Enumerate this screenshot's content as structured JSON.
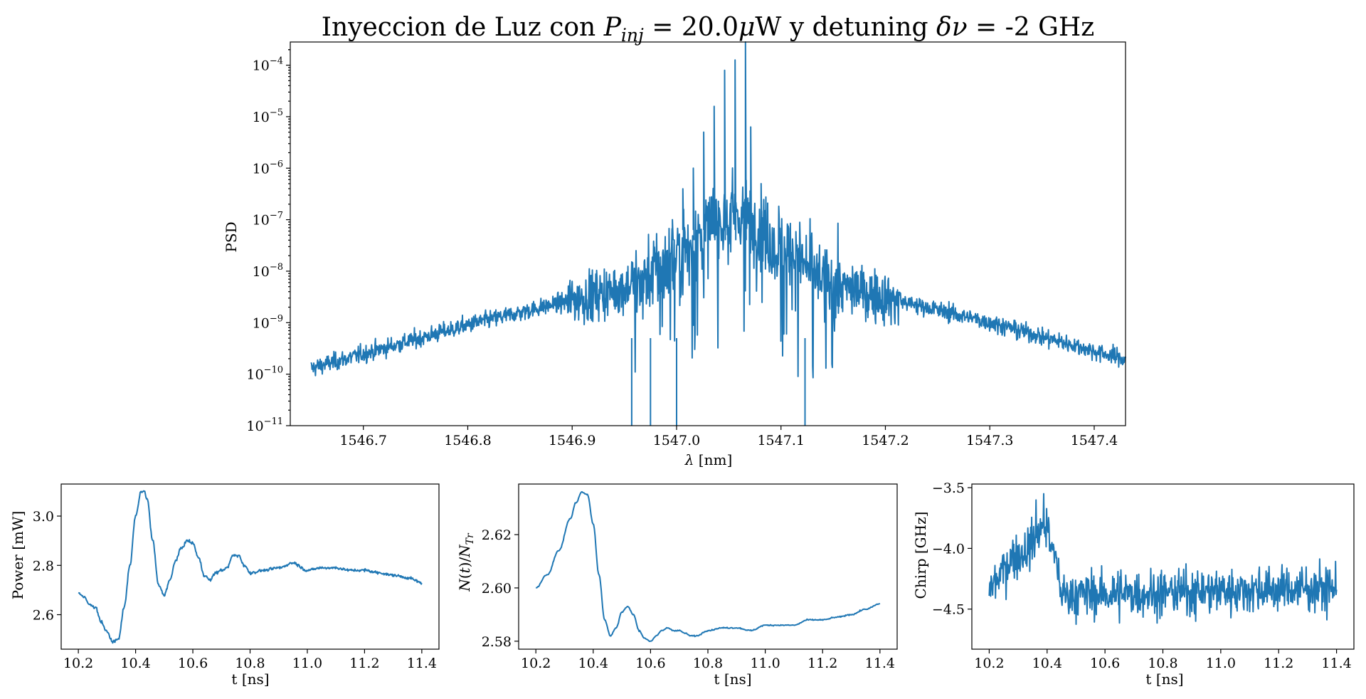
{
  "chart_data": [
    {
      "type": "line",
      "title_parts": [
        "Inyeccion de Luz con ",
        "P",
        "inj",
        " =  20.0",
        "μ",
        "W y detuning ",
        "δν",
        " = -2 GHz"
      ],
      "xlabel_parts": [
        "λ",
        " [nm]"
      ],
      "ylabel": "PSD",
      "yscale": "log",
      "xlim": [
        1546.63,
        1547.43
      ],
      "ylim_exp": [
        -11,
        -3.55
      ],
      "xticks": [
        "1546.7",
        "1546.8",
        "1546.9",
        "1547.0",
        "1547.1",
        "1547.2",
        "1547.3",
        "1547.4"
      ],
      "yticks": [
        {
          "base": "10",
          "exp": "−4"
        },
        {
          "base": "10",
          "exp": "−5"
        },
        {
          "base": "10",
          "exp": "−6"
        },
        {
          "base": "10",
          "exp": "−7"
        },
        {
          "base": "10",
          "exp": "−8"
        },
        {
          "base": "10",
          "exp": "−9"
        },
        {
          "base": "10",
          "exp": "−10"
        },
        {
          "base": "10",
          "exp": "−11"
        }
      ],
      "peaks": [
        {
          "x": 1547.066,
          "log10_psd": -3.55
        },
        {
          "x": 1547.056,
          "log10_psd": -3.9
        },
        {
          "x": 1547.046,
          "log10_psd": -4.1
        },
        {
          "x": 1547.036,
          "log10_psd": -4.8
        },
        {
          "x": 1547.026,
          "log10_psd": -5.3
        },
        {
          "x": 1547.071,
          "log10_psd": -5.2
        },
        {
          "x": 1547.016,
          "log10_psd": -6.0
        },
        {
          "x": 1547.081,
          "log10_psd": -6.3
        },
        {
          "x": 1547.006,
          "log10_psd": -6.4
        },
        {
          "x": 1546.996,
          "log10_psd": -7.0
        }
      ],
      "color": "#1f77b4"
    },
    {
      "type": "line",
      "xlabel": "t [ns]",
      "ylabel": "Power [mW]",
      "xlim": [
        10.14,
        11.46
      ],
      "ylim": [
        2.46,
        3.13
      ],
      "xticks": [
        "10.2",
        "10.4",
        "10.6",
        "10.8",
        "11.0",
        "11.2",
        "11.4"
      ],
      "yticks": [
        "2.6",
        "2.8",
        "3.0"
      ],
      "x": [
        10.2,
        10.22,
        10.24,
        10.26,
        10.28,
        10.3,
        10.32,
        10.34,
        10.36,
        10.38,
        10.4,
        10.42,
        10.43,
        10.44,
        10.46,
        10.48,
        10.5,
        10.52,
        10.54,
        10.56,
        10.58,
        10.6,
        10.62,
        10.64,
        10.66,
        10.68,
        10.7,
        10.72,
        10.74,
        10.76,
        10.78,
        10.8,
        10.85,
        10.9,
        10.95,
        11.0,
        11.05,
        11.1,
        11.15,
        11.2,
        11.25,
        11.3,
        11.35,
        11.4
      ],
      "y": [
        2.69,
        2.67,
        2.64,
        2.63,
        2.57,
        2.53,
        2.49,
        2.5,
        2.63,
        2.8,
        3.0,
        3.1,
        3.1,
        3.07,
        2.9,
        2.72,
        2.68,
        2.74,
        2.82,
        2.87,
        2.9,
        2.89,
        2.83,
        2.76,
        2.74,
        2.77,
        2.78,
        2.79,
        2.84,
        2.84,
        2.8,
        2.77,
        2.78,
        2.79,
        2.81,
        2.78,
        2.79,
        2.79,
        2.78,
        2.78,
        2.77,
        2.76,
        2.75,
        2.73
      ],
      "color": "#1f77b4"
    },
    {
      "type": "line",
      "xlabel": "t [ns]",
      "ylabel_parts": [
        "N",
        "(",
        "t",
        ")/",
        "N",
        "Tr"
      ],
      "xlim": [
        10.14,
        11.46
      ],
      "ylim": [
        2.577,
        2.639
      ],
      "xticks": [
        "10.2",
        "10.4",
        "10.6",
        "10.8",
        "11.0",
        "11.2",
        "11.4"
      ],
      "yticks": [
        "2.58",
        "2.60",
        "2.62"
      ],
      "x": [
        10.2,
        10.24,
        10.28,
        10.32,
        10.34,
        10.36,
        10.38,
        10.4,
        10.42,
        10.44,
        10.46,
        10.48,
        10.5,
        10.52,
        10.54,
        10.56,
        10.58,
        10.6,
        10.62,
        10.64,
        10.66,
        10.68,
        10.7,
        10.72,
        10.74,
        10.76,
        10.8,
        10.85,
        10.9,
        10.95,
        11.0,
        11.05,
        11.1,
        11.15,
        11.2,
        11.25,
        11.3,
        11.35,
        11.4
      ],
      "y": [
        2.6,
        2.605,
        2.614,
        2.626,
        2.632,
        2.636,
        2.635,
        2.624,
        2.605,
        2.588,
        2.582,
        2.585,
        2.591,
        2.593,
        2.59,
        2.584,
        2.581,
        2.58,
        2.582,
        2.584,
        2.585,
        2.584,
        2.584,
        2.583,
        2.582,
        2.582,
        2.584,
        2.585,
        2.585,
        2.584,
        2.586,
        2.586,
        2.586,
        2.588,
        2.588,
        2.589,
        2.59,
        2.592,
        2.594
      ],
      "color": "#1f77b4"
    },
    {
      "type": "line",
      "xlabel": "t [ns]",
      "ylabel": "Chirp [GHz]",
      "xlim": [
        10.14,
        11.46
      ],
      "ylim": [
        -4.83,
        -3.47
      ],
      "xticks": [
        "10.2",
        "10.4",
        "10.6",
        "10.8",
        "11.0",
        "11.2",
        "11.4"
      ],
      "yticks": [
        "−3.5",
        "−4.0",
        "−4.5"
      ],
      "mean_segments": [
        {
          "x": [
            10.2,
            10.3,
            10.4
          ],
          "y": [
            -4.3,
            -4.05,
            -3.85
          ]
        },
        {
          "x": [
            10.4,
            10.43,
            10.45
          ],
          "y": [
            -3.85,
            -4.1,
            -4.35
          ]
        },
        {
          "x": [
            10.45,
            11.4
          ],
          "y": [
            -4.38,
            -4.33
          ]
        }
      ],
      "noise_amplitude": 0.13,
      "color": "#1f77b4"
    }
  ]
}
